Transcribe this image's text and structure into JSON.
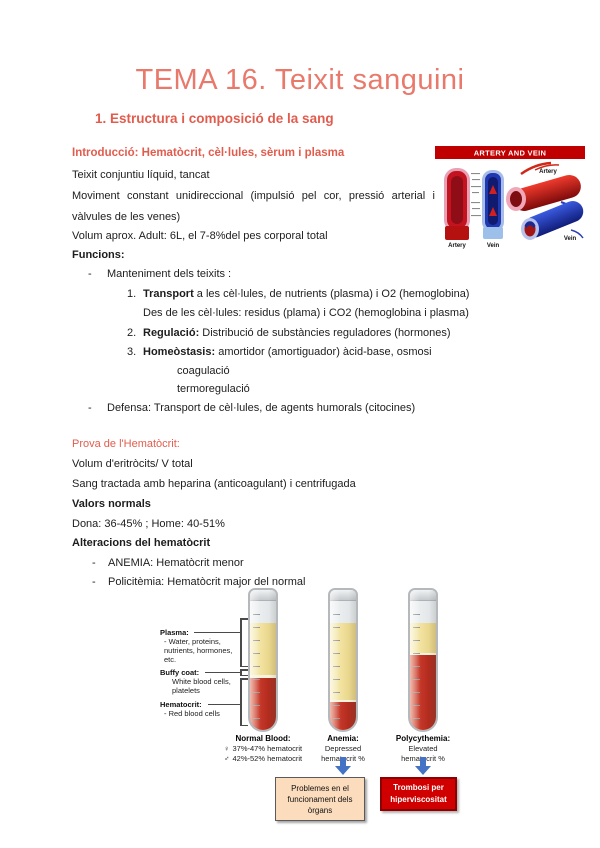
{
  "page": {
    "title": "TEMA 16. Teixit sanguini",
    "section_heading": "1.  Estructura i composició de la sang"
  },
  "intro": {
    "heading": "Introducció: Hematòcrit, cèl·lules, sèrum i plasma",
    "p1": "Teixit conjuntiu líquid, tancat",
    "p2_line1": "Moviment constant unidireccional (impulsió pel cor, pressió arterial i",
    "p2_line2": "vàlvules de les venes)",
    "p3": "Volum aprox. Adult: 6L, el 7-8%del pes corporal total",
    "functions_label": "Funcions:",
    "bullet_marker": "-",
    "bullet1": "Manteniment dels teixits :",
    "items": [
      {
        "num": "1.",
        "bold": "Transport",
        "text": " a les cèl·lules, de nutrients (plasma) i O2 (hemoglobina)"
      },
      {
        "num": "2.",
        "bold": "Regulació:",
        "text": " Distribució de substàncies reguladores (hormones)"
      },
      {
        "num": "3.",
        "bold": "Homeòstasis:",
        "text": " amortidor (amortiguador) àcid-base, osmosi"
      }
    ],
    "item1_cont": "Des de les cèl·lules: residus (plama) i CO2 (hemoglobina i plasma)",
    "sub1": "coagulació",
    "sub2": "termoregulació",
    "bullet2": "Defensa: Transport de cèl·lules, de agents humorals (citocines)"
  },
  "prova": {
    "heading": "Prova de l'Hematòcrit:",
    "l1": "Volum d'eritròcits/ V total",
    "l2": "Sang tractada amb heparina (anticoagulant) i centrifugada",
    "l3": "Valors normals",
    "l4": "Dona: 36-45% ; Home: 40-51%",
    "l5": "Alteracions del hematòcrit",
    "b1": "ANEMIA: Hematòcrit menor",
    "b2": "Policitèmia: Hematòcrit major del normal"
  },
  "artery_figure": {
    "banner": "ARTERY AND VEIN",
    "left_artery_label": "Artery",
    "left_vein_label": "Vein",
    "right_artery_label": "Artery",
    "right_vein_label": "Vein"
  },
  "hematocrit_figure": {
    "labels": {
      "plasma_title": "Plasma:",
      "plasma_desc": "- Water, proteins, nutrients, hormones, etc.",
      "buffy_title": "Buffy coat:",
      "buffy_desc": "White blood cells, platelets",
      "hematocrit_title": "Hematocrit:",
      "hematocrit_desc": "- Red blood cells"
    },
    "tubes": [
      {
        "caption_title": "Normal Blood:",
        "female_symbol": "♀",
        "female_text": "37%-47% hematocrit",
        "male_symbol": "♂",
        "male_text": "42%-52% hematocrit",
        "fills": {
          "plasma": 52,
          "buffy": 3
        }
      },
      {
        "caption_title": "Anemia:",
        "caption_lines": [
          "Depressed",
          "hematocrit %"
        ],
        "fills": {
          "plasma": 77,
          "buffy": 2
        }
      },
      {
        "caption_title": "Polycythemia:",
        "caption_lines": [
          "Elevated",
          "hematocrit %"
        ],
        "fills": {
          "plasma": 30,
          "buffy": 2
        }
      }
    ],
    "box_anemia": "Problemes en el funcionament dels òrgans",
    "box_poly": "Trombosi per hiperviscositat"
  },
  "colors": {
    "accent_coral": "#E8796B",
    "heading_red": "#E25C4E",
    "banner_red": "#C00000",
    "alert_red": "#D00000",
    "warning_peach": "#FBDCBD",
    "arrow_blue": "#4472C4",
    "plasma_yellow": "#F2E3A1",
    "blood_red": "#C23527"
  }
}
